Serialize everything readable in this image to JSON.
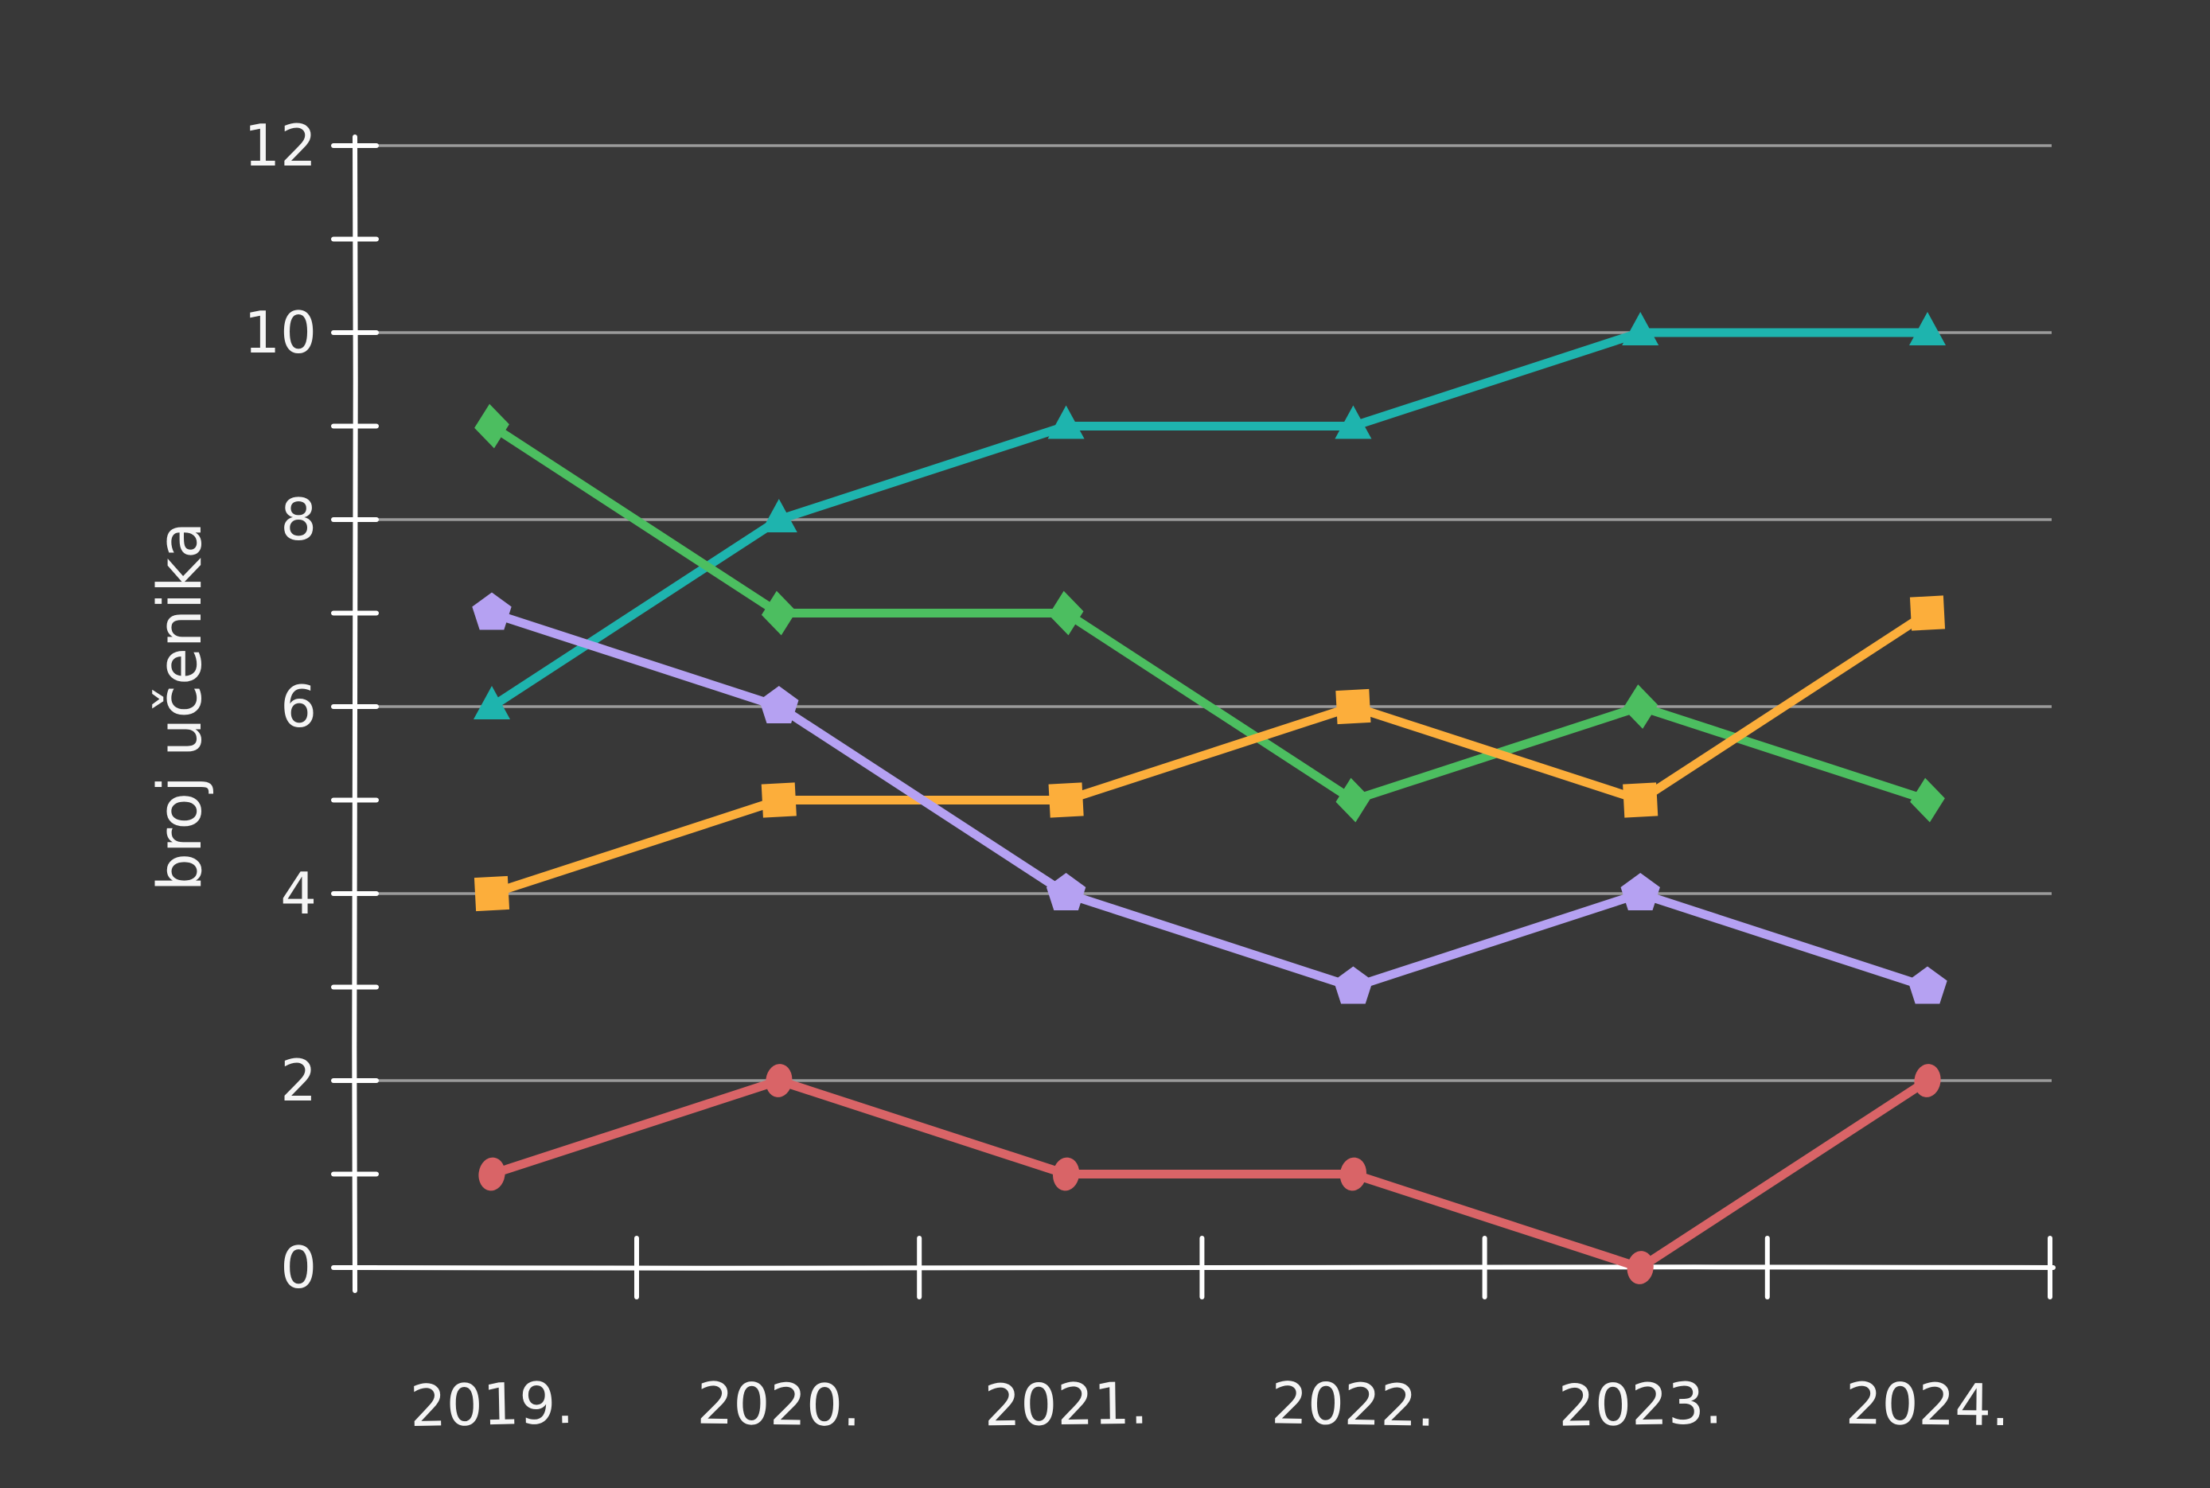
{
  "chart_data": {
    "type": "line",
    "title": "",
    "xlabel": "",
    "ylabel": "broj učenika",
    "categories": [
      "2019.",
      "2020.",
      "2021.",
      "2022.",
      "2023.",
      "2024."
    ],
    "ylim": [
      0,
      12
    ],
    "ytick_labels": [
      "0",
      "2",
      "4",
      "6",
      "8",
      "10",
      "12"
    ],
    "ytick_values": [
      0,
      2,
      4,
      6,
      8,
      10,
      12
    ],
    "yminor_tick_values": [
      1,
      3,
      5,
      7,
      9,
      11
    ],
    "grid": "horizontal-on-even-values",
    "legend_position": "none",
    "style": "xkcd-hand-drawn-dark",
    "series": [
      {
        "name": "teal-triangle",
        "marker": "triangle",
        "color": "#1EB4AE",
        "values": [
          6,
          8,
          9,
          9,
          10,
          10
        ]
      },
      {
        "name": "green-diamond",
        "marker": "diamond",
        "color": "#4CBE60",
        "values": [
          9,
          7,
          7,
          5,
          6,
          5
        ]
      },
      {
        "name": "orange-square",
        "marker": "square",
        "color": "#FCAE3B",
        "values": [
          4,
          5,
          5,
          6,
          5,
          7
        ]
      },
      {
        "name": "purple-pentagon",
        "marker": "pentagon",
        "color": "#B5A1F2",
        "values": [
          7,
          6,
          4,
          3,
          4,
          3
        ]
      },
      {
        "name": "red-circle",
        "marker": "circle",
        "color": "#D96467",
        "values": [
          1,
          2,
          1,
          1,
          0,
          2
        ]
      }
    ],
    "colors": {
      "background": "#383838",
      "axis": "#FFFFFF",
      "gridline": "#9B9B9B",
      "text": "#F5F5F5"
    }
  }
}
